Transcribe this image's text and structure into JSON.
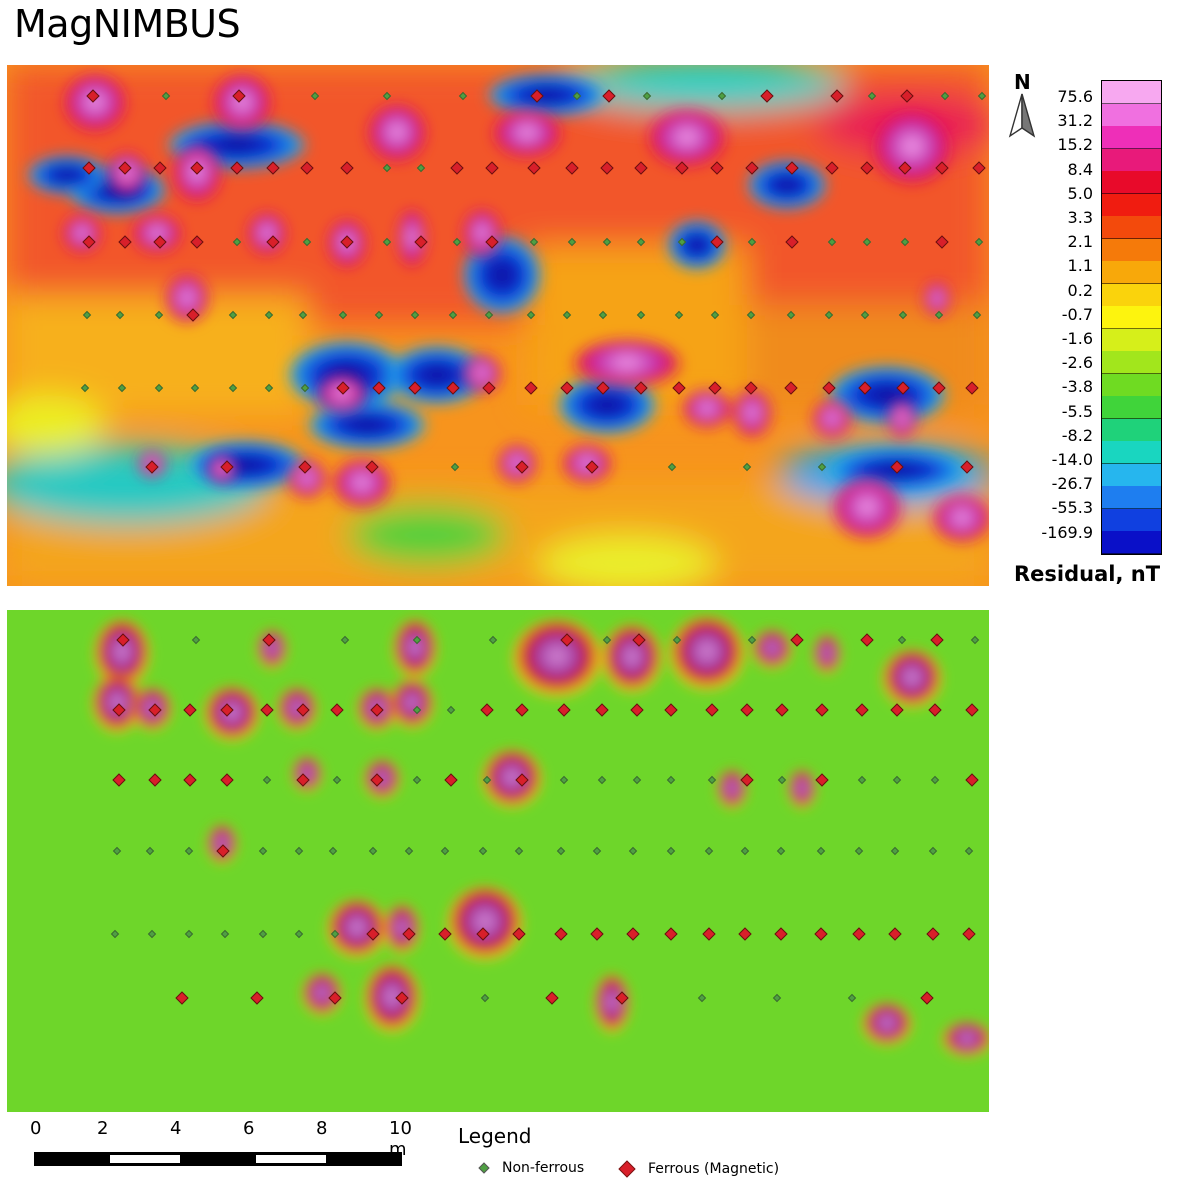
{
  "title": "MagNIMBUS",
  "north_label": "N",
  "colorbar": {
    "title": "Residual, nT",
    "labels": [
      "75.6",
      "31.2",
      "15.2",
      "8.4",
      "5.0",
      "3.3",
      "2.1",
      "1.1",
      "0.2",
      "-0.7",
      "-1.6",
      "-2.6",
      "-3.8",
      "-5.5",
      "-8.2",
      "-14.0",
      "-26.7",
      "-55.3",
      "-169.9"
    ],
    "colors": [
      "#f7a8f0",
      "#f070e0",
      "#ee2fb8",
      "#e81a7a",
      "#e80a2a",
      "#f01c10",
      "#f34a0c",
      "#f57a0a",
      "#f8a80a",
      "#fad30c",
      "#fdf40e",
      "#d6ef1a",
      "#a2e61c",
      "#6fdb22",
      "#40d43a",
      "#1fd27a",
      "#19d6c0",
      "#26b6ee",
      "#1e7ef0",
      "#1040e0",
      "#0a10c8"
    ]
  },
  "scale_bar": {
    "ticks": [
      "0",
      "2",
      "4",
      "6",
      "8",
      "10 m"
    ]
  },
  "legend": {
    "title": "Legend",
    "items": [
      {
        "label": "Non-ferrous",
        "color": "#4f9f43",
        "symbol": "diamond"
      },
      {
        "label": "Ferrous (Magnetic)",
        "color": "#d81f2a",
        "symbol": "diamond"
      }
    ]
  }
}
